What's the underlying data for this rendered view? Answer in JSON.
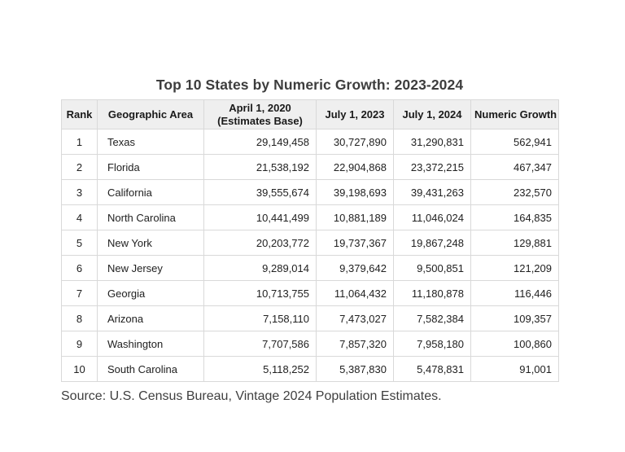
{
  "title": "Top 10 States by Numeric Growth: 2023-2024",
  "chart_data": {
    "type": "table",
    "title": "Top 10 States by Numeric Growth: 2023-2024",
    "headers": [
      {
        "label": "Rank",
        "sublabel": ""
      },
      {
        "label": "Geographic Area",
        "sublabel": ""
      },
      {
        "label": "April 1, 2020",
        "sublabel": "(Estimates Base)"
      },
      {
        "label": "July 1, 2023",
        "sublabel": ""
      },
      {
        "label": "July 1, 2024",
        "sublabel": ""
      },
      {
        "label": "Numeric Growth",
        "sublabel": ""
      }
    ],
    "rows": [
      [
        "1",
        "Texas",
        "29,149,458",
        "30,727,890",
        "31,290,831",
        "562,941"
      ],
      [
        "2",
        "Florida",
        "21,538,192",
        "22,904,868",
        "23,372,215",
        "467,347"
      ],
      [
        "3",
        "California",
        "39,555,674",
        "39,198,693",
        "39,431,263",
        "232,570"
      ],
      [
        "4",
        "North Carolina",
        "10,441,499",
        "10,881,189",
        "11,046,024",
        "164,835"
      ],
      [
        "5",
        "New York",
        "20,203,772",
        "19,737,367",
        "19,867,248",
        "129,881"
      ],
      [
        "6",
        "New Jersey",
        "9,289,014",
        "9,379,642",
        "9,500,851",
        "121,209"
      ],
      [
        "7",
        "Georgia",
        "10,713,755",
        "11,064,432",
        "11,180,878",
        "116,446"
      ],
      [
        "8",
        "Arizona",
        "7,158,110",
        "7,473,027",
        "7,582,384",
        "109,357"
      ],
      [
        "9",
        "Washington",
        "7,707,586",
        "7,857,320",
        "7,958,180",
        "100,860"
      ],
      [
        "10",
        "South Carolina",
        "5,118,252",
        "5,387,830",
        "5,478,831",
        "91,001"
      ]
    ]
  },
  "source_note": "Source: U.S. Census Bureau, Vintage 2024 Population Estimates.",
  "colors": {
    "header_bg": "#efefef",
    "border": "#d9d9d9",
    "body_text": "#212121",
    "title_text": "#3d3d3d",
    "page_bg": "#ffffff"
  }
}
